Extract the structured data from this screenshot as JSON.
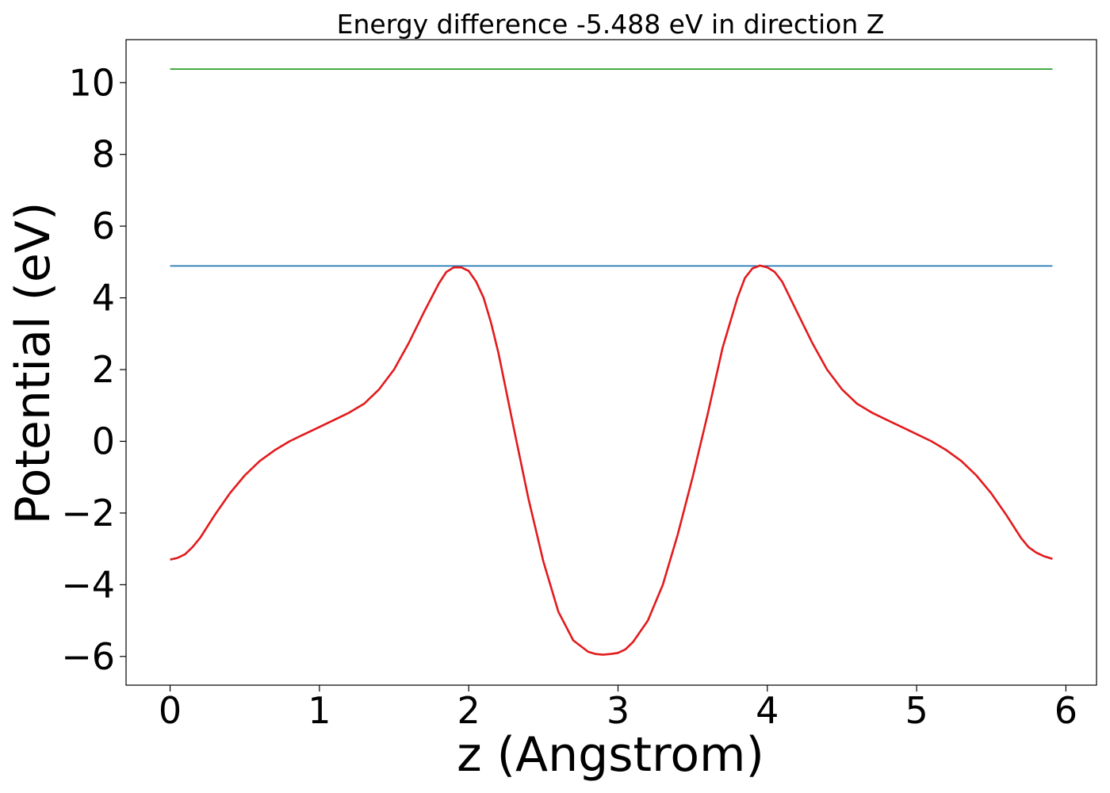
{
  "chart_data": {
    "type": "line",
    "title": "Energy difference -5.488 eV in direction Z",
    "xlabel": "z (Angstrom)",
    "ylabel": "Potential (eV)",
    "xlim": [
      -0.295,
      6.205
    ],
    "ylim": [
      -6.8,
      11.2
    ],
    "xticks": [
      0,
      1,
      2,
      3,
      4,
      5,
      6
    ],
    "xtick_labels": [
      "0",
      "1",
      "2",
      "3",
      "4",
      "5",
      "6"
    ],
    "yticks": [
      -6,
      -4,
      -2,
      0,
      2,
      4,
      6,
      8,
      10
    ],
    "ytick_labels": [
      "−6",
      "−4",
      "−2",
      "0",
      "2",
      "4",
      "6",
      "8",
      "10"
    ],
    "grid": false,
    "series": [
      {
        "color": "#2ca02c",
        "x": [
          0,
          5.91
        ],
        "y": [
          10.38,
          10.38
        ]
      },
      {
        "color": "#1f77b4",
        "x": [
          0,
          5.91
        ],
        "y": [
          4.89,
          4.89
        ]
      },
      {
        "color": "#e31a1c",
        "x": [
          0,
          0.05,
          0.1,
          0.15,
          0.2,
          0.3,
          0.4,
          0.5,
          0.6,
          0.7,
          0.8,
          0.9,
          1.0,
          1.1,
          1.2,
          1.3,
          1.4,
          1.5,
          1.6,
          1.7,
          1.8,
          1.85,
          1.9,
          1.95,
          2.0,
          2.05,
          2.1,
          2.15,
          2.2,
          2.3,
          2.4,
          2.5,
          2.6,
          2.7,
          2.8,
          2.85,
          2.9,
          2.95,
          2.97,
          3.0,
          3.05,
          3.1,
          3.2,
          3.3,
          3.4,
          3.5,
          3.6,
          3.7,
          3.8,
          3.85,
          3.9,
          3.95,
          4.0,
          4.05,
          4.1,
          4.2,
          4.3,
          4.4,
          4.5,
          4.6,
          4.7,
          4.8,
          4.9,
          5.0,
          5.1,
          5.2,
          5.3,
          5.4,
          5.5,
          5.6,
          5.7,
          5.75,
          5.8,
          5.85,
          5.91
        ],
        "y": [
          -3.3,
          -3.25,
          -3.15,
          -2.95,
          -2.7,
          -2.05,
          -1.45,
          -0.95,
          -0.55,
          -0.25,
          0.0,
          0.2,
          0.4,
          0.6,
          0.8,
          1.05,
          1.45,
          2.0,
          2.75,
          3.6,
          4.4,
          4.72,
          4.85,
          4.85,
          4.75,
          4.45,
          4.0,
          3.3,
          2.45,
          0.4,
          -1.6,
          -3.35,
          -4.75,
          -5.55,
          -5.87,
          -5.93,
          -5.95,
          -5.93,
          -5.92,
          -5.9,
          -5.8,
          -5.6,
          -5.0,
          -4.0,
          -2.6,
          -1.0,
          0.75,
          2.6,
          4.0,
          4.55,
          4.82,
          4.9,
          4.85,
          4.72,
          4.45,
          3.6,
          2.75,
          2.0,
          1.45,
          1.05,
          0.8,
          0.6,
          0.4,
          0.2,
          0.0,
          -0.25,
          -0.55,
          -0.95,
          -1.45,
          -2.05,
          -2.7,
          -2.95,
          -3.1,
          -3.2,
          -3.28
        ]
      }
    ]
  }
}
